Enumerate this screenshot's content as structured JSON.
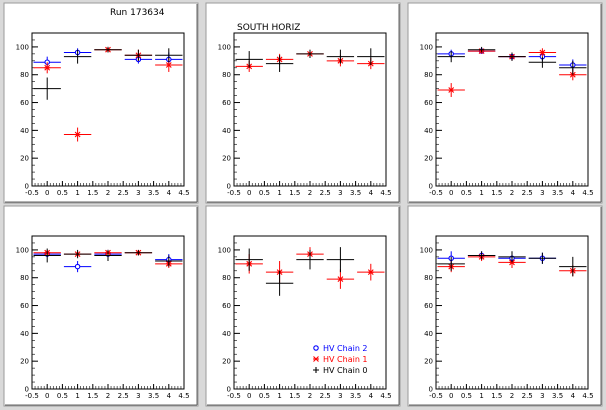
{
  "run_label": "Run 173634",
  "legend": {
    "entries": [
      {
        "label": "HV Chain 2",
        "color": "#0000ff",
        "marker": "circle"
      },
      {
        "label": "HV Chain 1",
        "color": "#ff0000",
        "marker": "star"
      },
      {
        "label": "HV Chain 0",
        "color": "#000000",
        "marker": "cross"
      }
    ]
  },
  "chart_data": [
    {
      "type": "scatter",
      "title": "",
      "annotation": "Run 173634",
      "xlim": [
        -0.5,
        4.5
      ],
      "ylim": [
        0,
        110
      ],
      "x_ticks": [
        "-0.5",
        "0",
        "0.5",
        "1",
        "1.5",
        "2",
        "2.5",
        "3",
        "3.5",
        "4",
        "4.5"
      ],
      "y_ticks": [
        "0",
        "20",
        "40",
        "60",
        "80",
        "100"
      ],
      "series": [
        {
          "name": "HV Chain 2",
          "color": "#0000ff",
          "points": [
            [
              0,
              89,
              4
            ],
            [
              1,
              96,
              3
            ],
            [
              3,
              91,
              3
            ],
            [
              4,
              91,
              5
            ]
          ]
        },
        {
          "name": "HV Chain 1",
          "color": "#ff0000",
          "points": [
            [
              0,
              85,
              4
            ],
            [
              1,
              37,
              5
            ],
            [
              2,
              98,
              2
            ],
            [
              3,
              94,
              4
            ],
            [
              4,
              87,
              5
            ]
          ]
        },
        {
          "name": "HV Chain 0",
          "color": "#000000",
          "points": [
            [
              0,
              70,
              8
            ],
            [
              1,
              93,
              5
            ],
            [
              2,
              98,
              2
            ],
            [
              3,
              94,
              4
            ],
            [
              4,
              94,
              5
            ]
          ]
        }
      ]
    },
    {
      "type": "scatter",
      "title": "",
      "annotation": "SOUTH HORIZ",
      "xlim": [
        -0.5,
        4.5
      ],
      "ylim": [
        0,
        110
      ],
      "x_ticks": [
        "-0.5",
        "0",
        "0.5",
        "1",
        "1.5",
        "2",
        "2.5",
        "3",
        "3.5",
        "4",
        "4.5"
      ],
      "y_ticks": [
        "0",
        "20",
        "40",
        "60",
        "80",
        "100"
      ],
      "series": [
        {
          "name": "HV Chain 1",
          "color": "#ff0000",
          "points": [
            [
              0,
              86,
              4
            ],
            [
              1,
              91,
              4
            ],
            [
              2,
              95,
              3
            ],
            [
              3,
              90,
              4
            ],
            [
              4,
              88,
              4
            ]
          ]
        },
        {
          "name": "HV Chain 0",
          "color": "#000000",
          "points": [
            [
              0,
              91,
              6
            ],
            [
              1,
              88,
              6
            ],
            [
              2,
              95,
              3
            ],
            [
              3,
              93,
              5
            ],
            [
              4,
              93,
              6
            ]
          ]
        }
      ]
    },
    {
      "type": "scatter",
      "title": "",
      "annotation": "",
      "xlim": [
        -0.5,
        4.5
      ],
      "ylim": [
        0,
        110
      ],
      "x_ticks": [
        "-0.5",
        "0",
        "0.5",
        "1",
        "1.5",
        "2",
        "2.5",
        "3",
        "3.5",
        "4",
        "4.5"
      ],
      "y_ticks": [
        "0",
        "20",
        "40",
        "60",
        "80",
        "100"
      ],
      "series": [
        {
          "name": "HV Chain 2",
          "color": "#0000ff",
          "points": [
            [
              0,
              95,
              3
            ],
            [
              1,
              97,
              2
            ],
            [
              2,
              93,
              3
            ],
            [
              3,
              93,
              3
            ],
            [
              4,
              87,
              4
            ]
          ]
        },
        {
          "name": "HV Chain 1",
          "color": "#ff0000",
          "points": [
            [
              0,
              69,
              5
            ],
            [
              1,
              97,
              2
            ],
            [
              2,
              93,
              3
            ],
            [
              3,
              96,
              3
            ],
            [
              4,
              80,
              4
            ]
          ]
        },
        {
          "name": "HV Chain 0",
          "color": "#000000",
          "points": [
            [
              0,
              93,
              4
            ],
            [
              1,
              98,
              2
            ],
            [
              2,
              93,
              3
            ],
            [
              3,
              89,
              4
            ],
            [
              4,
              85,
              5
            ]
          ]
        }
      ]
    },
    {
      "type": "scatter",
      "title": "",
      "annotation": "",
      "xlim": [
        -0.5,
        4.5
      ],
      "ylim": [
        0,
        110
      ],
      "x_ticks": [
        "-0.5",
        "0",
        "0.5",
        "1",
        "1.5",
        "2",
        "2.5",
        "3",
        "3.5",
        "4",
        "4.5"
      ],
      "y_ticks": [
        "0",
        "20",
        "40",
        "60",
        "80",
        "100"
      ],
      "series": [
        {
          "name": "HV Chain 2",
          "color": "#0000ff",
          "points": [
            [
              0,
              97,
              2
            ],
            [
              1,
              88,
              4
            ],
            [
              2,
              97,
              3
            ],
            [
              4,
              93,
              4
            ]
          ]
        },
        {
          "name": "HV Chain 1",
          "color": "#ff0000",
          "points": [
            [
              0,
              98,
              2
            ],
            [
              1,
              97,
              2
            ],
            [
              2,
              98,
              2
            ],
            [
              3,
              98,
              2
            ],
            [
              4,
              90,
              3
            ]
          ]
        },
        {
          "name": "HV Chain 0",
          "color": "#000000",
          "points": [
            [
              0,
              96,
              5
            ],
            [
              1,
              97,
              3
            ],
            [
              2,
              96,
              4
            ],
            [
              3,
              98,
              2
            ],
            [
              4,
              92,
              4
            ]
          ]
        }
      ]
    },
    {
      "type": "scatter",
      "title": "",
      "annotation": "",
      "xlim": [
        -0.5,
        4.5
      ],
      "ylim": [
        0,
        110
      ],
      "x_ticks": [
        "-0.5",
        "0",
        "0.5",
        "1",
        "1.5",
        "2",
        "2.5",
        "3",
        "3.5",
        "4",
        "4.5"
      ],
      "y_ticks": [
        "0",
        "20",
        "40",
        "60",
        "80",
        "100"
      ],
      "series": [
        {
          "name": "HV Chain 1",
          "color": "#ff0000",
          "points": [
            [
              0,
              90,
              7
            ],
            [
              1,
              84,
              8
            ],
            [
              2,
              97,
              5
            ],
            [
              3,
              79,
              7
            ],
            [
              4,
              84,
              6
            ]
          ]
        },
        {
          "name": "HV Chain 0",
          "color": "#000000",
          "points": [
            [
              0,
              93,
              8
            ],
            [
              1,
              76,
              9
            ],
            [
              2,
              93,
              7
            ],
            [
              3,
              93,
              9
            ]
          ]
        }
      ]
    },
    {
      "type": "scatter",
      "title": "",
      "annotation": "",
      "xlim": [
        -0.5,
        4.5
      ],
      "ylim": [
        0,
        110
      ],
      "x_ticks": [
        "-0.5",
        "0",
        "0.5",
        "1",
        "1.5",
        "2",
        "2.5",
        "3",
        "3.5",
        "4",
        "4.5"
      ],
      "y_ticks": [
        "0",
        "20",
        "40",
        "60",
        "80",
        "100"
      ],
      "series": [
        {
          "name": "HV Chain 2",
          "color": "#0000ff",
          "points": [
            [
              0,
              94,
              5
            ],
            [
              1,
              96,
              3
            ],
            [
              2,
              94,
              4
            ],
            [
              3,
              94,
              4
            ]
          ]
        },
        {
          "name": "HV Chain 1",
          "color": "#ff0000",
          "points": [
            [
              0,
              88,
              4
            ],
            [
              1,
              95,
              3
            ],
            [
              2,
              91,
              4
            ],
            [
              4,
              85,
              4
            ]
          ]
        },
        {
          "name": "HV Chain 0",
          "color": "#000000",
          "points": [
            [
              0,
              90,
              5
            ],
            [
              1,
              96,
              3
            ],
            [
              2,
              95,
              4
            ],
            [
              3,
              94,
              4
            ],
            [
              4,
              88,
              7
            ]
          ]
        }
      ]
    }
  ]
}
